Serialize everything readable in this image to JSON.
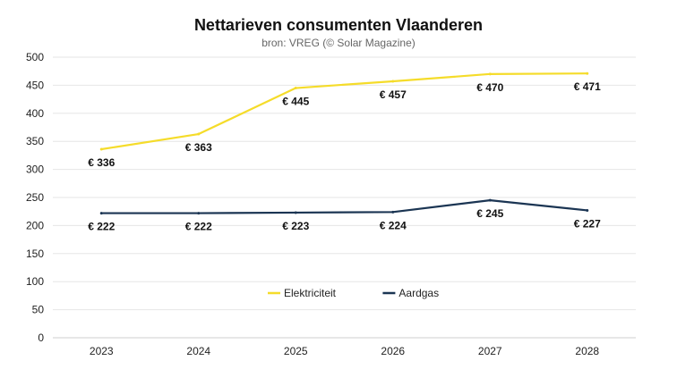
{
  "chart_data": {
    "type": "line",
    "title": "Nettarieven consumenten Vlaanderen",
    "subtitle": "bron: VREG (© Solar Magazine)",
    "xlabel": "",
    "ylabel": "",
    "categories": [
      "2023",
      "2024",
      "2025",
      "2026",
      "2027",
      "2028"
    ],
    "ylim": [
      0,
      500
    ],
    "yticks": [
      0,
      50,
      100,
      150,
      200,
      250,
      300,
      350,
      400,
      450,
      500
    ],
    "grid": true,
    "legend_position": "center",
    "series": [
      {
        "name": "Elektriciteit",
        "color": "#f5dc2a",
        "values": [
          336,
          363,
          445,
          457,
          470,
          471
        ],
        "labels": [
          "€ 336",
          "€ 363",
          "€ 445",
          "€ 457",
          "€ 470",
          "€ 471"
        ]
      },
      {
        "name": "Aardgas",
        "color": "#1b3553",
        "values": [
          222,
          222,
          223,
          224,
          245,
          227
        ],
        "labels": [
          "€ 222",
          "€ 222",
          "€ 223",
          "€ 224",
          "€ 245",
          "€ 227"
        ]
      }
    ]
  }
}
